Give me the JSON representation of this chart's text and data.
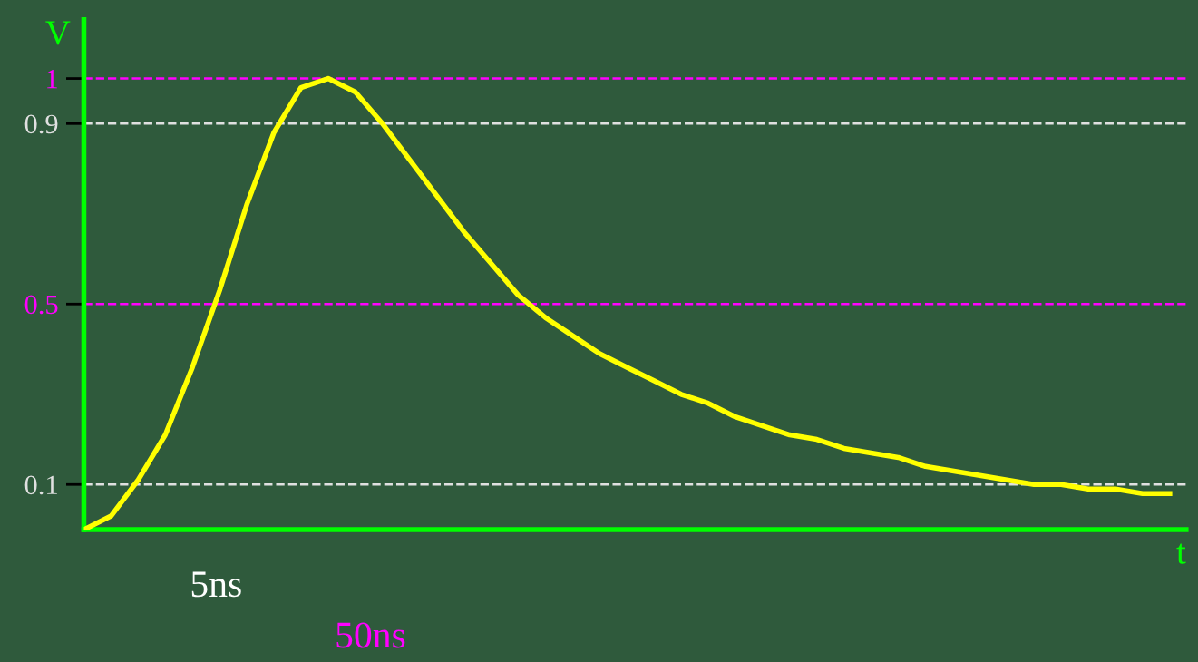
{
  "chart_data": {
    "type": "line",
    "xlabel": "t",
    "ylabel": "V",
    "categories": [
      null,
      null,
      null,
      null,
      null,
      null,
      null,
      null,
      null,
      null,
      null,
      null,
      null,
      null,
      null,
      null,
      null,
      null,
      null,
      null,
      null,
      null,
      null,
      null,
      null,
      null,
      null,
      null,
      null,
      null,
      null,
      null,
      null,
      null,
      null,
      null,
      null,
      null,
      null,
      null,
      null
    ],
    "series": [
      {
        "color": "#ffff00",
        "values": [
          0,
          0.03,
          0.11,
          0.21,
          0.36,
          0.53,
          0.72,
          0.88,
          0.98,
          1.0,
          0.97,
          0.9,
          0.82,
          0.74,
          0.66,
          0.59,
          0.52,
          0.47,
          0.43,
          0.39,
          0.36,
          0.33,
          0.3,
          0.28,
          0.25,
          0.23,
          0.21,
          0.2,
          0.18,
          0.17,
          0.16,
          0.14,
          0.13,
          0.12,
          0.11,
          0.1,
          0.1,
          0.09,
          0.09,
          0.08,
          0.08
        ]
      }
    ],
    "ylim": [
      0,
      1.13
    ],
    "yticks": [
      0.1,
      0.5,
      0.9,
      1
    ],
    "ref_lines": [
      {
        "axis": "y",
        "value": 0.1,
        "color": "#e0e0e0",
        "line_style": "dashed"
      },
      {
        "axis": "y",
        "value": 0.5,
        "color": "#ff00ff",
        "line_style": "dashed"
      },
      {
        "axis": "y",
        "value": 0.9,
        "color": "#e0e0e0",
        "line_style": "dashed"
      },
      {
        "axis": "y",
        "value": 1,
        "color": "#ff00ff",
        "line_style": "dashed"
      }
    ],
    "annotations": [
      "5ns",
      "50ns"
    ],
    "grid": false,
    "legend": false,
    "marker": "none",
    "line_style": "solid"
  }
}
